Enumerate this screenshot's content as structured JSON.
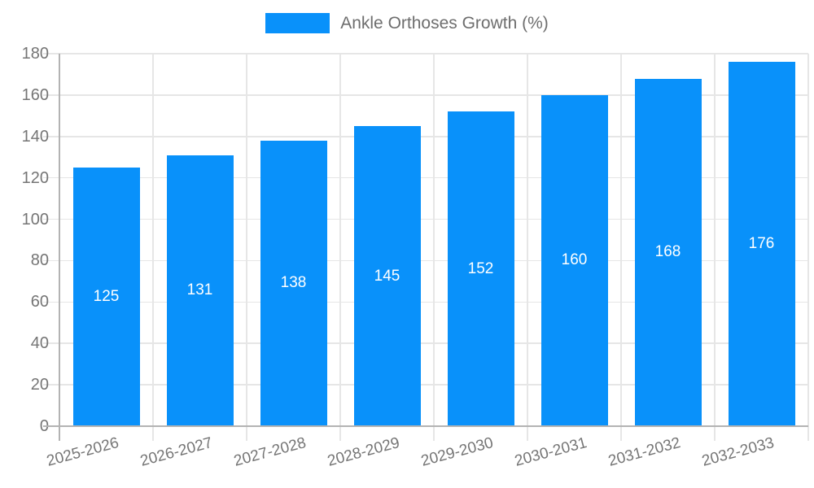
{
  "chart_data": {
    "type": "bar",
    "title": "Ankle Orthoses Growth (%)",
    "categories": [
      "2025-2026",
      "2026-2027",
      "2027-2028",
      "2028-2029",
      "2029-2030",
      "2030-2031",
      "2031-2032",
      "2032-2033"
    ],
    "values": [
      125,
      131,
      138,
      145,
      152,
      160,
      168,
      176
    ],
    "xlabel": "",
    "ylabel": "",
    "ylim": [
      0,
      180
    ],
    "yticks": [
      0,
      20,
      40,
      60,
      80,
      100,
      120,
      140,
      160,
      180
    ],
    "grid": true,
    "legend_position": "top",
    "value_labels": "white, centered inside bars"
  },
  "colors": {
    "bar": "#0991FA",
    "grid": "#e6e6e6",
    "axis": "#b3b3b3",
    "tick_text": "#757575",
    "legend_text": "#6e6e6e",
    "value_text": "#ffffff",
    "background": "#ffffff"
  }
}
